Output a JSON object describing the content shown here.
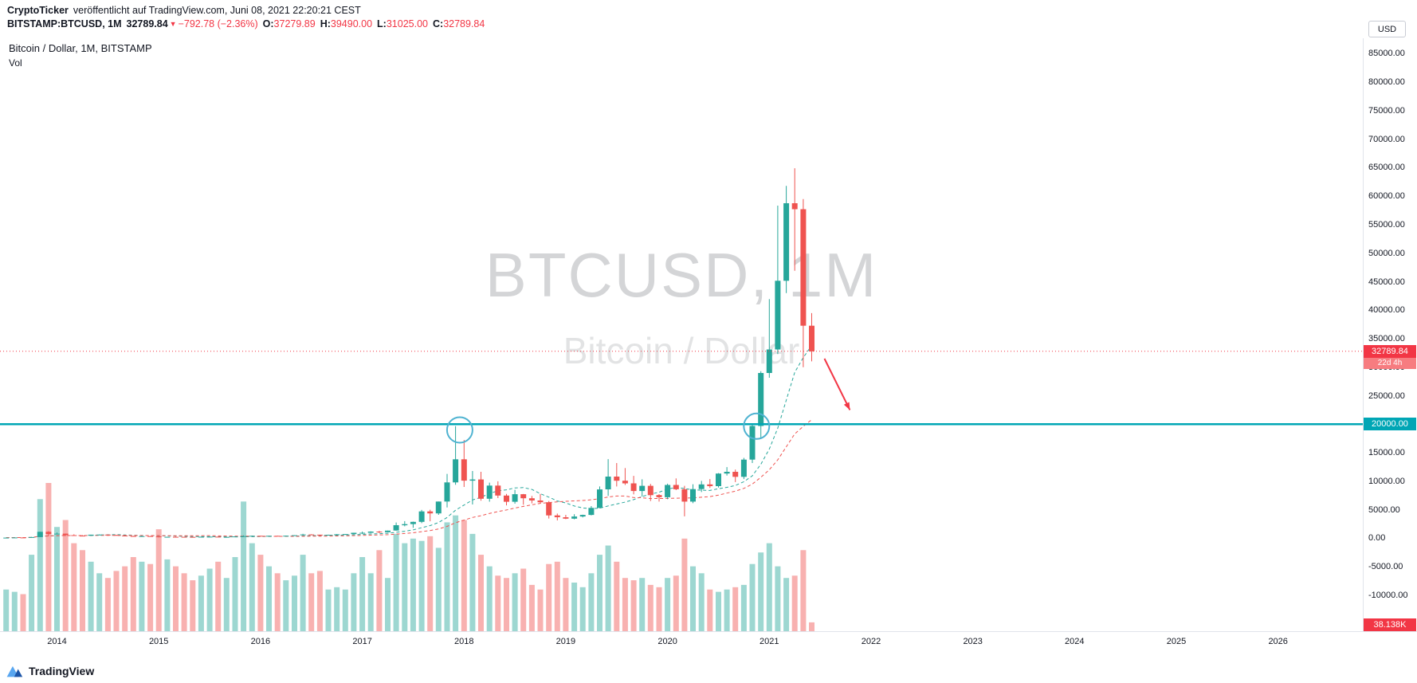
{
  "page": {
    "attribution": {
      "author": "CryptoTicker",
      "text": "veröffentlicht auf TradingView.com, Juni 08, 2021 22:20:21 CEST"
    },
    "symbol": {
      "name": "BITSTAMP:BTCUSD, 1M",
      "last": "32789.84",
      "direction_icon": "▼",
      "change": "−792.78 (−2.36%)",
      "ohlc": [
        {
          "label": "O:",
          "value": "37279.89"
        },
        {
          "label": "H:",
          "value": "39490.00"
        },
        {
          "label": "L:",
          "value": "31025.00"
        },
        {
          "label": "C:",
          "value": "32789.84"
        }
      ]
    }
  },
  "chart": {
    "legend_title": "Bitcoin / Dollar, 1M, BITSTAMP",
    "legend_indicator": "Vol",
    "watermark_title": "BTCUSD, 1M",
    "watermark_subtitle": "Bitcoin / Dollar",
    "currency_button": "USD",
    "price_badge_value": "32789.84",
    "price_badge_countdown": "22d 4h",
    "level_badge": "20000.00",
    "volume_badge": "38.138K"
  },
  "footer": {
    "brand": "TradingView"
  },
  "colors": {
    "up": "#26a69a",
    "down": "#ef5350",
    "up_vol": "rgba(38,166,154,0.45)",
    "down_vol": "rgba(239,83,80,0.45)",
    "accent_red": "#f23645",
    "accent_teal": "#00a6b5",
    "circle_blue": "#4fb3d1"
  },
  "chart_data": {
    "type": "candlestick",
    "title": "Bitcoin / Dollar, 1M, BITSTAMP",
    "interval": "1M",
    "exchange": "BITSTAMP",
    "x_axis": {
      "first_candle_month": "2013-07",
      "years": [
        2014,
        2015,
        2016,
        2017,
        2018,
        2019,
        2020,
        2021,
        2022,
        2023,
        2024,
        2025,
        2026
      ]
    },
    "y_axis": {
      "currency": "USD",
      "range": [
        -16300,
        87700
      ],
      "ticks": [
        85000,
        80000,
        75000,
        70000,
        65000,
        60000,
        55000,
        50000,
        45000,
        40000,
        35000,
        30000,
        25000,
        20000,
        15000,
        10000,
        5000,
        0,
        -5000,
        -10000
      ]
    },
    "current_price": 32789.84,
    "bar_countdown": "22d 4h",
    "last_volume_k": 38.138,
    "horizontal_line": {
      "price": 20000,
      "color": "#00a6b5"
    },
    "moving_averages": [
      {
        "length": 10,
        "color": "#26a69a"
      },
      {
        "length": 21,
        "color": "#ef5350"
      }
    ],
    "annotations": {
      "t_unit": "months since 2013-07",
      "circle_color": "#4fb3d1",
      "circles": [
        {
          "t": 53.5,
          "price": 19000,
          "r": 16
        },
        {
          "t": 88.5,
          "price": 19650,
          "r": 16
        }
      ],
      "arrow": {
        "color": "#f23645",
        "from": {
          "t": 96.5,
          "price": 31500
        },
        "to": {
          "t": 99.5,
          "price": 22500
        }
      }
    },
    "columns": [
      "month",
      "open",
      "high",
      "low",
      "close",
      "volume_k"
    ],
    "candles": [
      [
        "2013-07",
        97,
        112,
        63,
        106,
        180
      ],
      [
        "2013-08",
        106,
        135,
        92,
        135,
        170
      ],
      [
        "2013-09",
        135,
        147,
        109,
        133,
        160
      ],
      [
        "2013-10",
        133,
        230,
        123,
        204,
        330
      ],
      [
        "2013-11",
        204,
        1163,
        200,
        1130,
        570
      ],
      [
        "2013-12",
        1130,
        1240,
        380,
        732,
        640
      ],
      [
        "2014-01",
        732,
        1015,
        715,
        806,
        450
      ],
      [
        "2014-02",
        806,
        830,
        400,
        550,
        480
      ],
      [
        "2014-03",
        550,
        700,
        420,
        454,
        380
      ],
      [
        "2014-04",
        454,
        550,
        340,
        446,
        350
      ],
      [
        "2014-05",
        446,
        630,
        420,
        627,
        300
      ],
      [
        "2014-06",
        627,
        680,
        540,
        635,
        250
      ],
      [
        "2014-07",
        635,
        660,
        560,
        589,
        230
      ],
      [
        "2014-08",
        589,
        600,
        440,
        477,
        260
      ],
      [
        "2014-09",
        477,
        500,
        365,
        386,
        280
      ],
      [
        "2014-10",
        386,
        420,
        275,
        338,
        320
      ],
      [
        "2014-11",
        338,
        460,
        320,
        378,
        300
      ],
      [
        "2014-12",
        378,
        384,
        285,
        320,
        290
      ],
      [
        "2015-01",
        320,
        325,
        152,
        217,
        440
      ],
      [
        "2015-02",
        217,
        265,
        210,
        254,
        310
      ],
      [
        "2015-03",
        254,
        300,
        236,
        244,
        280
      ],
      [
        "2015-04",
        244,
        262,
        210,
        236,
        250
      ],
      [
        "2015-05",
        236,
        248,
        226,
        230,
        220
      ],
      [
        "2015-06",
        230,
        268,
        210,
        263,
        240
      ],
      [
        "2015-07",
        263,
        318,
        255,
        284,
        270
      ],
      [
        "2015-08",
        284,
        288,
        198,
        230,
        300
      ],
      [
        "2015-09",
        230,
        246,
        223,
        236,
        230
      ],
      [
        "2015-10",
        236,
        334,
        235,
        314,
        320
      ],
      [
        "2015-11",
        314,
        504,
        300,
        377,
        560
      ],
      [
        "2015-12",
        377,
        469,
        340,
        430,
        380
      ],
      [
        "2016-01",
        430,
        436,
        350,
        368,
        330
      ],
      [
        "2016-02",
        368,
        447,
        365,
        437,
        280
      ],
      [
        "2016-03",
        437,
        440,
        383,
        416,
        250
      ],
      [
        "2016-04",
        416,
        470,
        410,
        448,
        220
      ],
      [
        "2016-05",
        448,
        550,
        440,
        531,
        240
      ],
      [
        "2016-06",
        531,
        780,
        510,
        673,
        330
      ],
      [
        "2016-07",
        673,
        707,
        592,
        624,
        250
      ],
      [
        "2016-08",
        624,
        630,
        465,
        575,
        260
      ],
      [
        "2016-09",
        575,
        629,
        565,
        609,
        180
      ],
      [
        "2016-10",
        609,
        720,
        598,
        700,
        190
      ],
      [
        "2016-11",
        700,
        755,
        670,
        745,
        180
      ],
      [
        "2016-12",
        745,
        982,
        740,
        963,
        250
      ],
      [
        "2017-01",
        963,
        1180,
        750,
        970,
        320
      ],
      [
        "2017-02",
        970,
        1220,
        920,
        1179,
        250
      ],
      [
        "2017-03",
        1179,
        1290,
        890,
        1071,
        350
      ],
      [
        "2017-04",
        1071,
        1350,
        1060,
        1347,
        230
      ],
      [
        "2017-05",
        1347,
        2760,
        1320,
        2286,
        420
      ],
      [
        "2017-06",
        2286,
        3000,
        2100,
        2480,
        380
      ],
      [
        "2017-07",
        2480,
        2920,
        1830,
        2875,
        400
      ],
      [
        "2017-08",
        2875,
        4980,
        2650,
        4703,
        390
      ],
      [
        "2017-09",
        4703,
        5000,
        2980,
        4360,
        410
      ],
      [
        "2017-10",
        4360,
        6450,
        4110,
        6440,
        360
      ],
      [
        "2017-11",
        6440,
        11300,
        5400,
        9800,
        470
      ],
      [
        "2017-12",
        9800,
        19666,
        9380,
        13850,
        500
      ],
      [
        "2018-01",
        13850,
        17234,
        9000,
        10100,
        480
      ],
      [
        "2018-02",
        10100,
        11790,
        5920,
        10309,
        420
      ],
      [
        "2018-03",
        10309,
        11650,
        6600,
        6928,
        330
      ],
      [
        "2018-04",
        6928,
        9760,
        6420,
        9240,
        280
      ],
      [
        "2018-05",
        9240,
        9990,
        7040,
        7494,
        240
      ],
      [
        "2018-06",
        7494,
        7780,
        5770,
        6404,
        230
      ],
      [
        "2018-07",
        6404,
        8500,
        6070,
        7729,
        250
      ],
      [
        "2018-08",
        7729,
        7770,
        5880,
        7011,
        270
      ],
      [
        "2018-09",
        7011,
        7420,
        6120,
        6625,
        200
      ],
      [
        "2018-10",
        6625,
        7790,
        6190,
        6317,
        180
      ],
      [
        "2018-11",
        6317,
        6540,
        3470,
        4017,
        290
      ],
      [
        "2018-12",
        4017,
        4330,
        3130,
        3691,
        300
      ],
      [
        "2019-01",
        3691,
        4110,
        3350,
        3437,
        230
      ],
      [
        "2019-02",
        3437,
        4220,
        3330,
        3813,
        210
      ],
      [
        "2019-03",
        3813,
        4140,
        3660,
        4092,
        190
      ],
      [
        "2019-04",
        4092,
        5640,
        4010,
        5320,
        250
      ],
      [
        "2019-05",
        5320,
        9090,
        5270,
        8574,
        330
      ],
      [
        "2019-06",
        8574,
        13880,
        7430,
        10817,
        370
      ],
      [
        "2019-07",
        10817,
        13200,
        9080,
        10085,
        300
      ],
      [
        "2019-08",
        10085,
        12320,
        9350,
        9630,
        230
      ],
      [
        "2019-09",
        9630,
        10950,
        7700,
        8293,
        220
      ],
      [
        "2019-10",
        8293,
        10350,
        7290,
        9199,
        230
      ],
      [
        "2019-11",
        9199,
        9530,
        6520,
        7569,
        200
      ],
      [
        "2019-12",
        7569,
        7750,
        6430,
        7193,
        190
      ],
      [
        "2020-01",
        7193,
        9570,
        6850,
        9350,
        230
      ],
      [
        "2020-02",
        9350,
        10500,
        8440,
        8599,
        240
      ],
      [
        "2020-03",
        8599,
        9190,
        3850,
        6438,
        400
      ],
      [
        "2020-04",
        6438,
        9470,
        6150,
        8629,
        280
      ],
      [
        "2020-05",
        8629,
        10070,
        8100,
        9448,
        250
      ],
      [
        "2020-06",
        9448,
        10380,
        8830,
        9137,
        180
      ],
      [
        "2020-07",
        9137,
        11440,
        8900,
        11351,
        170
      ],
      [
        "2020-08",
        11351,
        12480,
        11000,
        11655,
        180
      ],
      [
        "2020-09",
        11655,
        12050,
        9850,
        10776,
        190
      ],
      [
        "2020-10",
        10776,
        14100,
        10380,
        13797,
        200
      ],
      [
        "2020-11",
        13797,
        19860,
        13200,
        19698,
        290
      ],
      [
        "2020-12",
        19698,
        29300,
        17570,
        28990,
        340
      ],
      [
        "2021-01",
        28990,
        41950,
        28150,
        33108,
        380
      ],
      [
        "2021-02",
        33108,
        58352,
        32300,
        45164,
        280
      ],
      [
        "2021-03",
        45164,
        61800,
        43000,
        58763,
        230
      ],
      [
        "2021-04",
        58763,
        64895,
        46930,
        57720,
        240
      ],
      [
        "2021-05",
        57720,
        59500,
        30000,
        37279,
        350
      ],
      [
        "2021-06",
        37279.89,
        39490,
        31025,
        32789.84,
        38.138
      ]
    ]
  }
}
